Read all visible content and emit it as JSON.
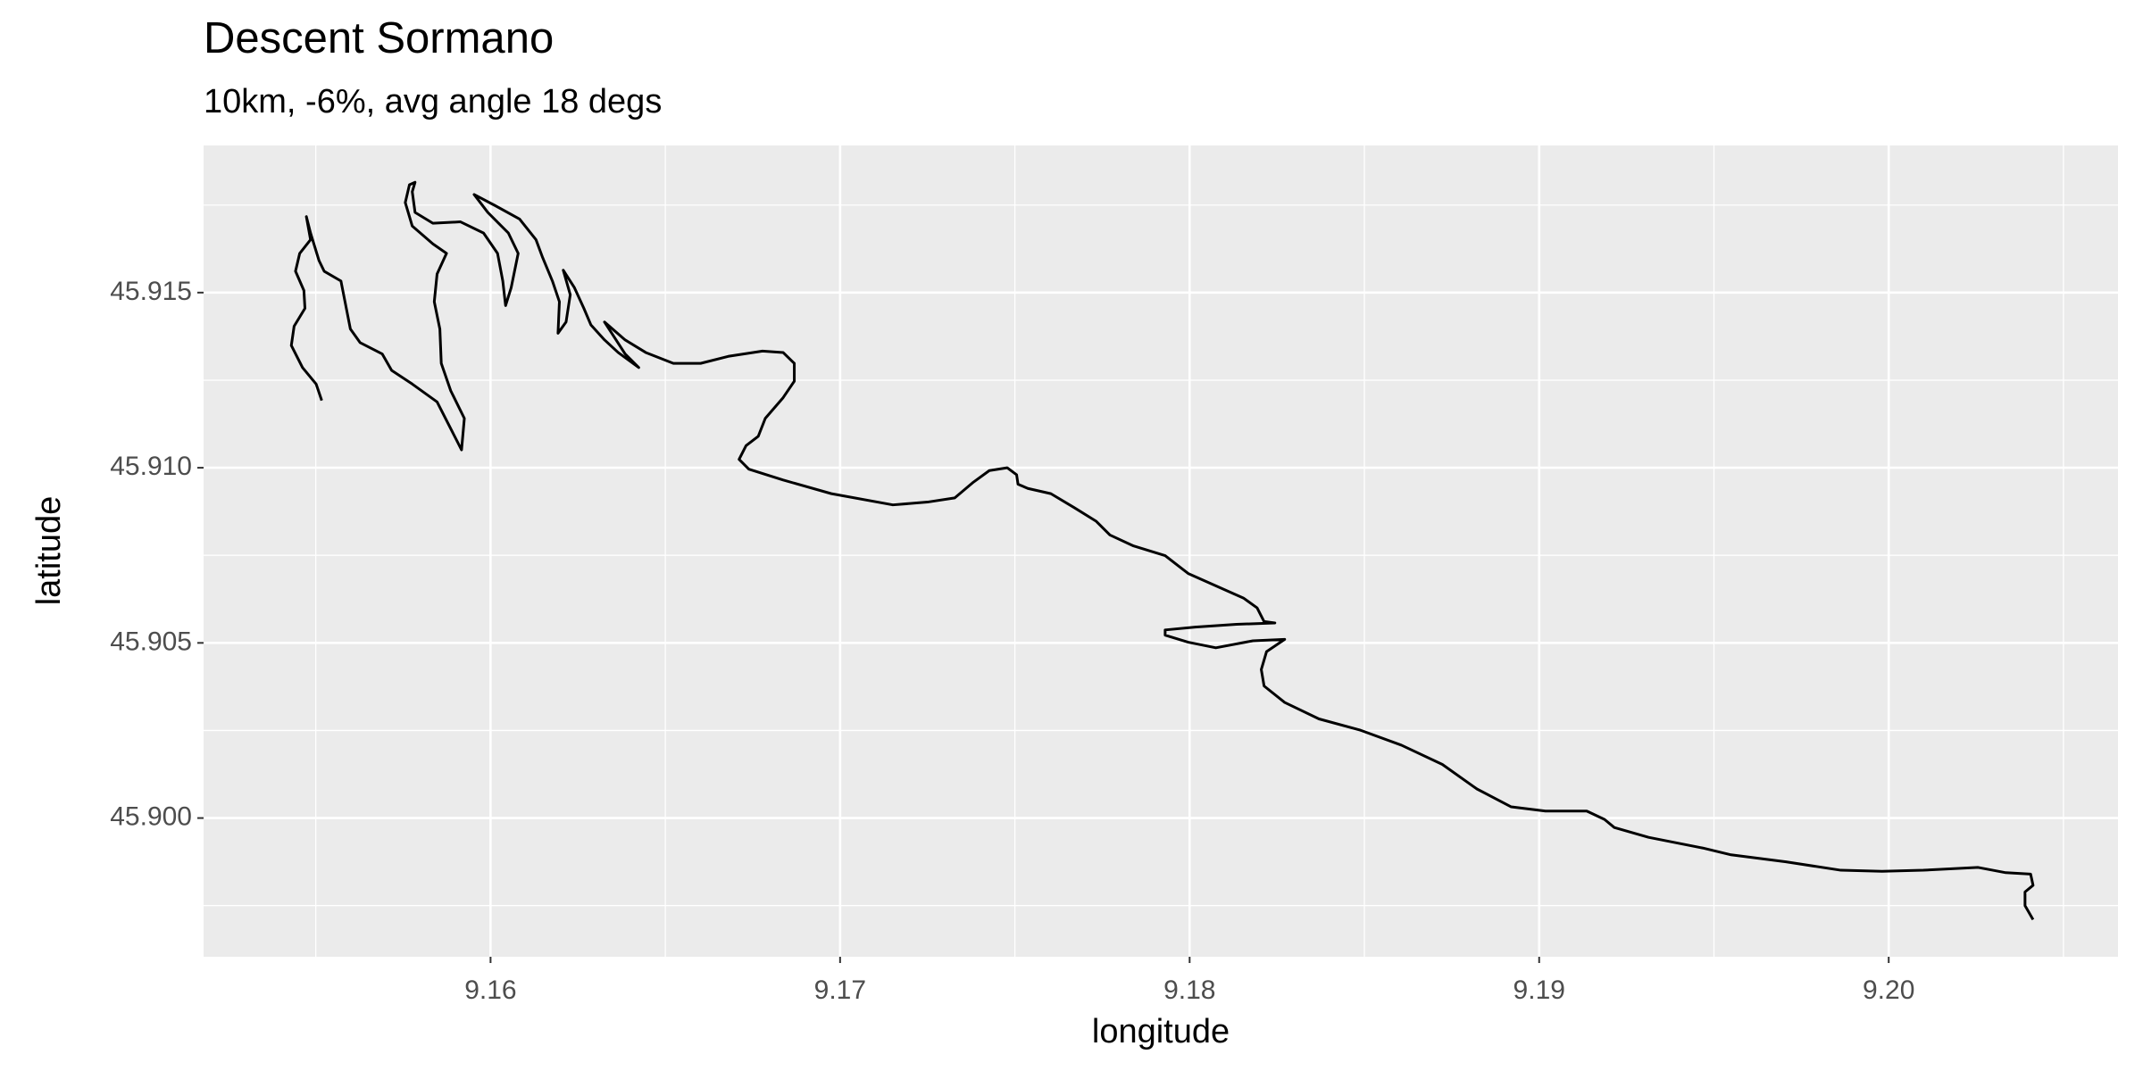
{
  "chart_data": {
    "type": "line",
    "title": "Descent Sormano",
    "subtitle": "10km, -6%, avg angle 18 degs",
    "x_label": "longitude",
    "y_label": "latitude",
    "color": "#000000",
    "background": "#ebebeb",
    "grid": true,
    "x": [
      9.15517,
      9.15501,
      9.15462,
      9.1543,
      9.15438,
      9.15469,
      9.15466,
      9.15442,
      9.15454,
      9.15485,
      9.15473,
      9.15485,
      9.15509,
      9.15524,
      9.15572,
      9.15599,
      9.15627,
      9.1569,
      9.15717,
      9.15776,
      9.15847,
      9.15917,
      9.15925,
      9.15886,
      9.15859,
      9.15855,
      9.15839,
      9.15847,
      9.15874,
      9.15835,
      9.15776,
      9.15756,
      9.15768,
      9.15784,
      9.15776,
      9.15784,
      9.15835,
      9.15914,
      9.1598,
      9.1602,
      9.16035,
      9.16043,
      9.16059,
      9.16079,
      9.16051,
      9.15992,
      9.15953,
      9.16012,
      9.16083,
      9.1613,
      9.16149,
      9.16177,
      9.16197,
      9.16193,
      9.16216,
      9.16228,
      9.16208,
      9.1624,
      9.16267,
      9.16287,
      9.16326,
      9.16365,
      9.16424,
      9.16385,
      9.16326,
      9.16385,
      9.16444,
      9.16523,
      9.16601,
      9.1668,
      9.16778,
      9.16837,
      9.16869,
      9.16869,
      9.16837,
      9.16786,
      9.16766,
      9.16731,
      9.16711,
      9.16739,
      9.16837,
      9.16975,
      9.17151,
      9.1725,
      9.17328,
      9.17379,
      9.17427,
      9.17478,
      9.17505,
      9.17509,
      9.17537,
      9.17603,
      9.1767,
      9.17733,
      9.17772,
      9.17839,
      9.1793,
      9.17996,
      9.18075,
      9.18154,
      9.18193,
      9.18213,
      9.18244,
      9.18134,
      9.18016,
      9.1793,
      9.1793,
      9.17996,
      9.18075,
      9.18181,
      9.18272,
      9.1822,
      9.18205,
      9.18213,
      9.18272,
      9.1837,
      9.18488,
      9.18606,
      9.18723,
      9.18822,
      9.1892,
      9.19018,
      9.19136,
      9.19187,
      9.19215,
      9.19313,
      9.1947,
      9.19549,
      9.19706,
      9.19863,
      9.19981,
      9.20099,
      9.20256,
      9.20335,
      9.20406,
      9.20413,
      9.2039,
      9.2039,
      9.20413
    ],
    "values": [
      45.91192,
      45.91239,
      45.91286,
      45.91349,
      45.91404,
      45.91455,
      45.91506,
      45.91561,
      45.91612,
      45.91651,
      45.91717,
      45.9167,
      45.91592,
      45.91561,
      45.91533,
      45.91396,
      45.91357,
      45.91325,
      45.91278,
      45.91239,
      45.91188,
      45.91051,
      45.91141,
      45.9122,
      45.91298,
      45.91396,
      45.91474,
      45.91553,
      45.91612,
      45.91639,
      45.9169,
      45.91757,
      45.91808,
      45.91815,
      45.91788,
      45.91729,
      45.91698,
      45.91702,
      45.9167,
      45.91612,
      45.91533,
      45.91463,
      45.91514,
      45.91612,
      45.9167,
      45.91729,
      45.9178,
      45.91749,
      45.9171,
      45.91651,
      45.916,
      45.91533,
      45.91474,
      45.91384,
      45.91416,
      45.91494,
      45.91564,
      45.91514,
      45.91455,
      45.91408,
      45.91365,
      45.91329,
      45.91286,
      45.91325,
      45.91416,
      45.91365,
      45.91329,
      45.91298,
      45.91298,
      45.91318,
      45.91333,
      45.91329,
      45.91298,
      45.91247,
      45.912,
      45.91141,
      45.9109,
      45.91063,
      45.91024,
      45.90996,
      45.90965,
      45.90926,
      45.90894,
      45.90902,
      45.90914,
      45.90957,
      45.90992,
      45.91,
      45.9098,
      45.90953,
      45.90941,
      45.90926,
      45.90886,
      45.90847,
      45.90808,
      45.90777,
      45.90749,
      45.90698,
      45.90663,
      45.90628,
      45.906,
      45.90561,
      45.90557,
      45.90553,
      45.90545,
      45.90537,
      45.90522,
      45.90502,
      45.90486,
      45.90506,
      45.9051,
      45.90475,
      45.90424,
      45.90377,
      45.9033,
      45.90283,
      45.90251,
      45.90208,
      45.90153,
      45.90083,
      45.90032,
      45.9002,
      45.9002,
      45.89996,
      45.89973,
      45.89945,
      45.89914,
      45.89895,
      45.89875,
      45.89851,
      45.89848,
      45.89851,
      45.89859,
      45.89844,
      45.8984,
      45.89808,
      45.89789,
      45.8975,
      45.8971
    ],
    "xlim": [
      9.15179,
      9.20656
    ],
    "ylim": [
      45.89604,
      45.9192
    ],
    "xticks": [
      9.16,
      9.17,
      9.18,
      9.19,
      {
        "value": 9.2,
        "label": "9.20"
      }
    ],
    "yticks": [
      {
        "value": 45.9,
        "label": "45.900"
      },
      45.905,
      {
        "value": 45.91,
        "label": "45.910"
      },
      45.915
    ],
    "xminor": [
      9.155,
      9.165,
      9.175,
      9.185,
      9.195,
      9.205
    ],
    "yminor": [
      45.8975,
      45.9025,
      45.9075,
      45.9125,
      45.9175
    ]
  }
}
